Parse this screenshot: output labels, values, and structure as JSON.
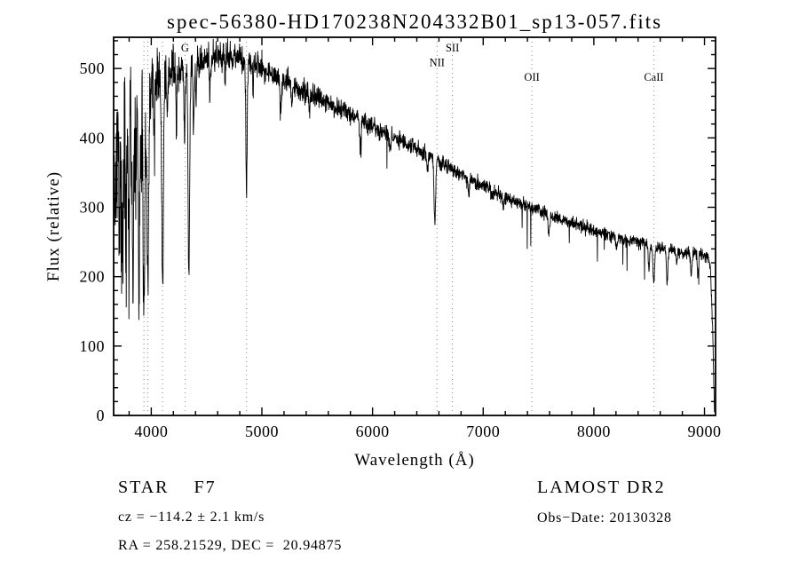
{
  "chart_data": {
    "type": "line",
    "title": "spec-56380-HD170238N204332B01_sp13-057.fits",
    "xlabel": "Wavelength (Å)",
    "ylabel": "Flux (relative)",
    "xlim": [
      3660,
      9100
    ],
    "ylim": [
      0,
      545
    ],
    "xticks": [
      4000,
      5000,
      6000,
      7000,
      8000,
      9000
    ],
    "yticks": [
      0,
      100,
      200,
      300,
      400,
      500
    ],
    "x_minor_step": 200,
    "y_minor_step": 20,
    "noise_seed": 42,
    "axis_color": "#000000",
    "marker_line_color": "#8a8a8a",
    "line_markers": [
      {
        "label": "",
        "wavelength": 3934,
        "row": 0
      },
      {
        "label": "",
        "wavelength": 3969,
        "row": 0
      },
      {
        "label": "",
        "wavelength": 4102,
        "row": 0
      },
      {
        "label": "G",
        "wavelength": 4305,
        "row": 0
      },
      {
        "label": "",
        "wavelength": 4861,
        "row": 0
      },
      {
        "label": "NII",
        "wavelength": 6583,
        "row": 1
      },
      {
        "label": "SII",
        "wavelength": 6722,
        "row": 0
      },
      {
        "label": "OII",
        "wavelength": 7440,
        "row": 2
      },
      {
        "label": "CaII",
        "wavelength": 8542,
        "row": 2
      }
    ],
    "continuum": [
      [
        3660,
        310
      ],
      [
        3690,
        390
      ],
      [
        3730,
        440
      ],
      [
        3780,
        460
      ],
      [
        3850,
        470
      ],
      [
        3950,
        478
      ],
      [
        4050,
        486
      ],
      [
        4150,
        492
      ],
      [
        4250,
        497
      ],
      [
        4350,
        503
      ],
      [
        4450,
        510
      ],
      [
        4550,
        516
      ],
      [
        4650,
        520
      ],
      [
        4750,
        518
      ],
      [
        4850,
        512
      ],
      [
        4950,
        503
      ],
      [
        5050,
        494
      ],
      [
        5150,
        486
      ],
      [
        5250,
        478
      ],
      [
        5350,
        470
      ],
      [
        5450,
        462
      ],
      [
        5550,
        454
      ],
      [
        5650,
        446
      ],
      [
        5750,
        438
      ],
      [
        5850,
        430
      ],
      [
        5950,
        421
      ],
      [
        6050,
        412
      ],
      [
        6150,
        404
      ],
      [
        6250,
        396
      ],
      [
        6350,
        388
      ],
      [
        6450,
        380
      ],
      [
        6550,
        372
      ],
      [
        6650,
        362
      ],
      [
        6750,
        352
      ],
      [
        6850,
        343
      ],
      [
        6950,
        334
      ],
      [
        7050,
        326
      ],
      [
        7150,
        318
      ],
      [
        7250,
        311
      ],
      [
        7350,
        304
      ],
      [
        7450,
        298
      ],
      [
        7550,
        292
      ],
      [
        7650,
        286
      ],
      [
        7750,
        280
      ],
      [
        7850,
        274
      ],
      [
        7950,
        269
      ],
      [
        8050,
        264
      ],
      [
        8150,
        259
      ],
      [
        8250,
        255
      ],
      [
        8350,
        251
      ],
      [
        8450,
        247
      ],
      [
        8550,
        243
      ],
      [
        8650,
        240
      ],
      [
        8750,
        237
      ],
      [
        8850,
        234
      ],
      [
        8950,
        231
      ],
      [
        9030,
        229
      ],
      [
        9055,
        210
      ],
      [
        9075,
        120
      ],
      [
        9090,
        2
      ]
    ],
    "absorption_lines": [
      [
        3712,
        150,
        6
      ],
      [
        3734,
        190,
        6
      ],
      [
        3750,
        170,
        5
      ],
      [
        3771,
        210,
        6
      ],
      [
        3798,
        230,
        6
      ],
      [
        3820,
        120,
        5
      ],
      [
        3835,
        260,
        7
      ],
      [
        3860,
        140,
        5
      ],
      [
        3889,
        290,
        7
      ],
      [
        3910,
        120,
        5
      ],
      [
        3934,
        340,
        8
      ],
      [
        3969,
        310,
        8
      ],
      [
        4026,
        90,
        5
      ],
      [
        4102,
        300,
        8
      ],
      [
        4144,
        70,
        5
      ],
      [
        4227,
        80,
        4
      ],
      [
        4300,
        90,
        5
      ],
      [
        4340,
        310,
        7
      ],
      [
        4383,
        90,
        5
      ],
      [
        4405,
        60,
        4
      ],
      [
        4530,
        50,
        5
      ],
      [
        4668,
        45,
        4
      ],
      [
        4861,
        185,
        6
      ],
      [
        4920,
        40,
        4
      ],
      [
        5170,
        55,
        6
      ],
      [
        5270,
        35,
        5
      ],
      [
        5430,
        25,
        5
      ],
      [
        5890,
        45,
        6
      ],
      [
        6160,
        20,
        5
      ],
      [
        6495,
        25,
        5
      ],
      [
        6563,
        92,
        7
      ],
      [
        6870,
        24,
        6
      ],
      [
        7180,
        15,
        6
      ],
      [
        7594,
        30,
        7
      ],
      [
        8205,
        18,
        6
      ],
      [
        8498,
        36,
        6
      ],
      [
        8542,
        52,
        7
      ],
      [
        8662,
        46,
        7
      ],
      [
        8750,
        20,
        5
      ],
      [
        8880,
        35,
        6
      ],
      [
        8940,
        30,
        5
      ]
    ],
    "noise_regions": [
      [
        3760,
        60
      ],
      [
        3860,
        48
      ],
      [
        3960,
        38
      ],
      [
        4060,
        26
      ],
      [
        4200,
        18
      ],
      [
        4450,
        13
      ],
      [
        5000,
        10
      ],
      [
        5600,
        8
      ],
      [
        6300,
        6.5
      ],
      [
        7200,
        5.5
      ],
      [
        8300,
        4.5
      ],
      [
        9100,
        4
      ]
    ]
  },
  "footer": {
    "object_class": "STAR    F7",
    "survey": "LAMOST DR2",
    "cz": "cz = −114.2 ± 2.1 km/s",
    "obs_date": "Obs−Date: 20130328",
    "ra_dec": "RA = 258.21529, DEC =  20.94875"
  }
}
